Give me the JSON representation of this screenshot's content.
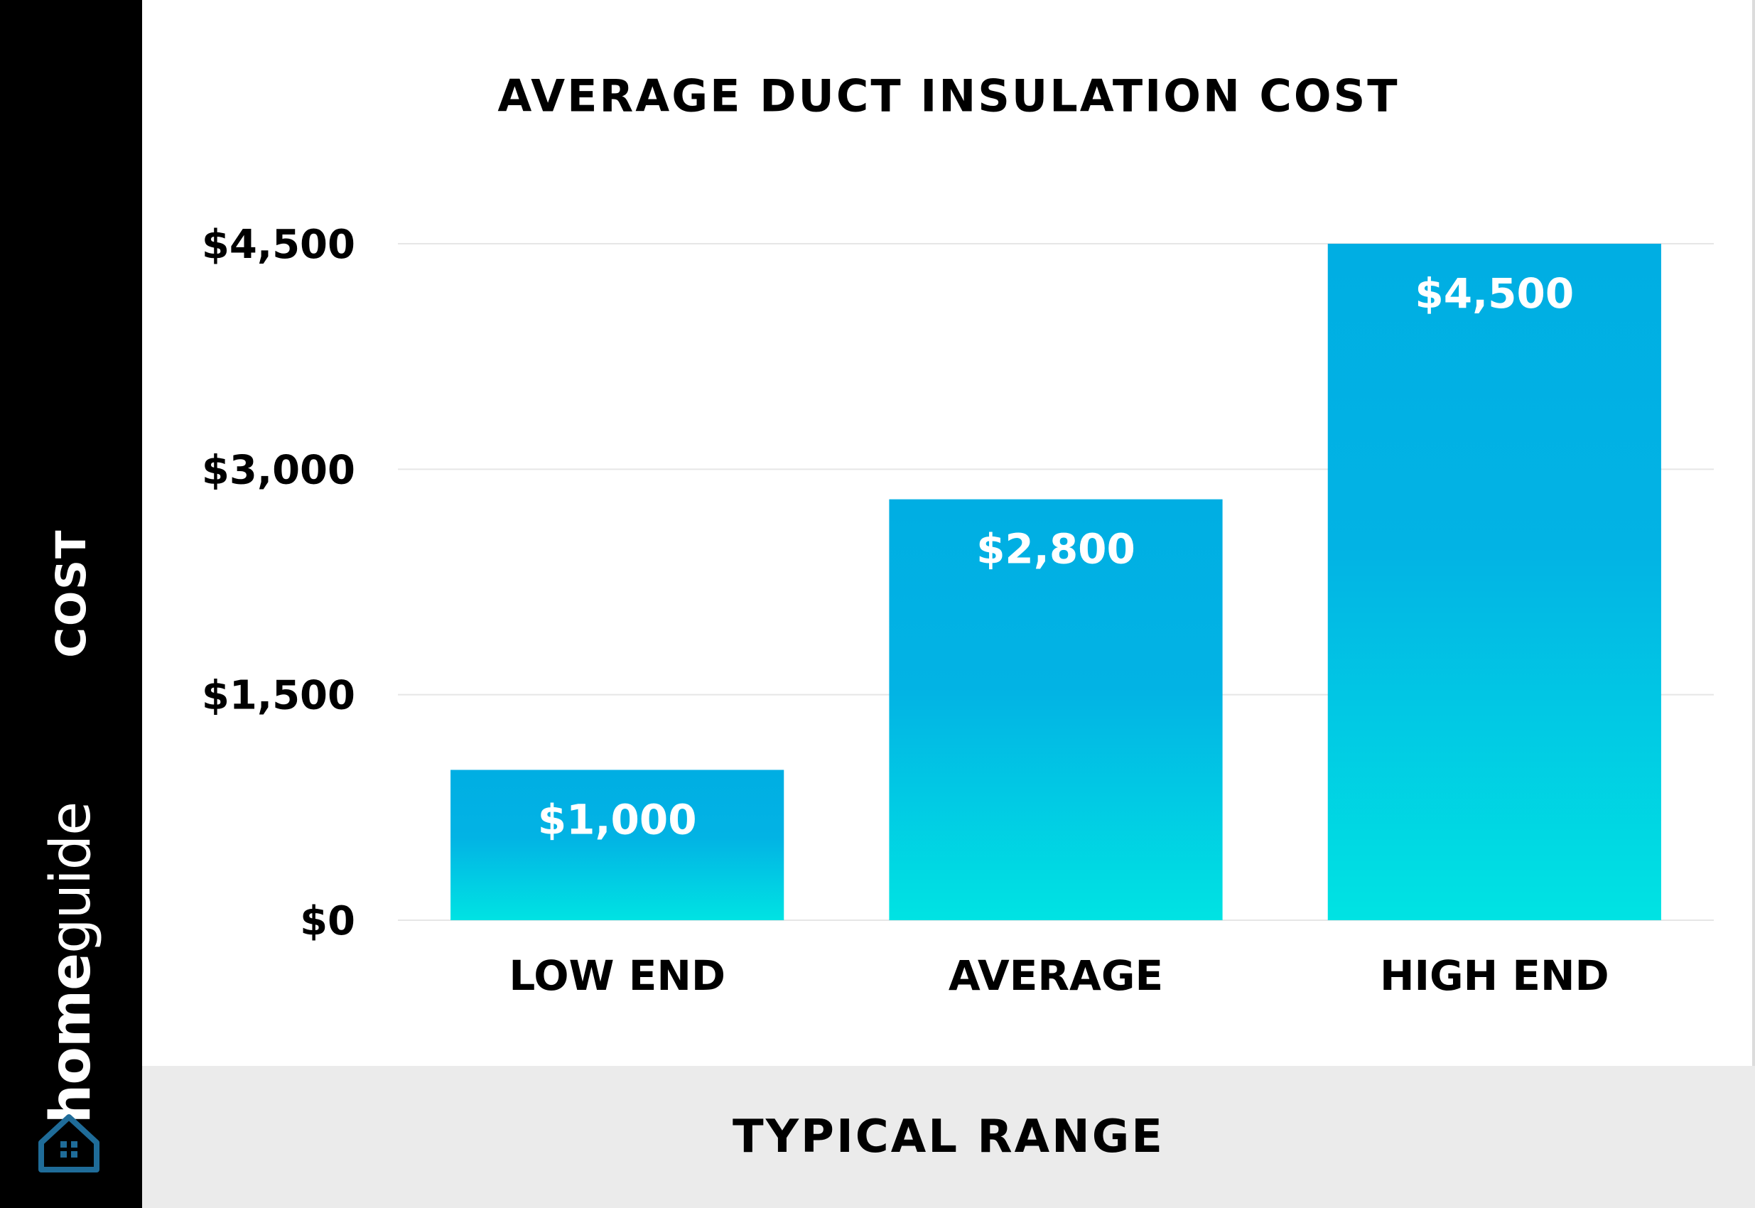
{
  "brand": {
    "name_bold": "home",
    "name_light": "guide",
    "logo_icon": "house-icon"
  },
  "chart_data": {
    "type": "bar",
    "title": "AVERAGE DUCT INSULATION COST",
    "xlabel": "TYPICAL RANGE",
    "ylabel": "COST",
    "categories": [
      "LOW END",
      "AVERAGE",
      "HIGH END"
    ],
    "values": [
      1000,
      2800,
      4500
    ],
    "value_labels": [
      "$1,000",
      "$2,800",
      "$4,500"
    ],
    "ylim": [
      0,
      4500
    ],
    "yticks": [
      0,
      1500,
      3000,
      4500
    ],
    "ytick_labels": [
      "$0",
      "$1,500",
      "$3,000",
      "$4,500"
    ],
    "grid": true,
    "legend": "none",
    "colors": {
      "bar_top": "#00aee3",
      "bar_mid": "#02b3e4",
      "bar_bottom": "#00e3e3",
      "grid": "#e6e6e6",
      "left_band": "#000000",
      "bottom_band": "#ebebeb",
      "logo": "#1f6c99"
    }
  }
}
